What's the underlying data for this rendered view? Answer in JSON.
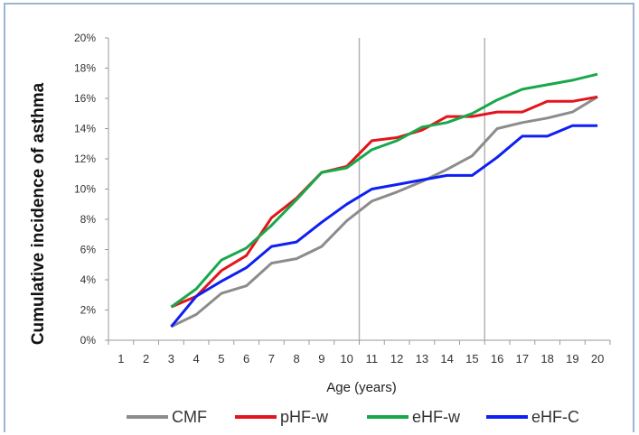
{
  "chart_data": {
    "type": "line",
    "title": "",
    "xlabel": "Age (years)",
    "ylabel": "Cumulative incidence of asthma",
    "x": [
      1,
      2,
      3,
      4,
      5,
      6,
      7,
      8,
      9,
      10,
      11,
      12,
      13,
      14,
      15,
      16,
      17,
      18,
      19,
      20
    ],
    "x_tick_labels": [
      "1",
      "2",
      "3",
      "4",
      "5",
      "6",
      "7",
      "8",
      "9",
      "10",
      "11",
      "12",
      "13",
      "14",
      "15",
      "16",
      "17",
      "18",
      "19",
      "20"
    ],
    "y_tick_labels": [
      "0%",
      "2%",
      "4%",
      "6%",
      "8%",
      "10%",
      "12%",
      "14%",
      "16%",
      "18%",
      "20%"
    ],
    "ylim": [
      0,
      20
    ],
    "y_unit": "%",
    "grid": false,
    "vertical_reference_lines_x": [
      10.5,
      15.5
    ],
    "legend_position": "bottom",
    "series": [
      {
        "name": "CMF",
        "color": "#8c8c8c",
        "x": [
          3,
          4,
          5,
          6,
          7,
          8,
          9,
          10,
          11,
          12,
          13,
          14,
          15,
          16,
          17,
          18,
          19,
          20
        ],
        "values": [
          0.9,
          1.7,
          3.1,
          3.6,
          5.1,
          5.4,
          6.2,
          7.9,
          9.2,
          9.8,
          10.5,
          11.3,
          12.2,
          14.0,
          14.4,
          14.7,
          15.1,
          16.1
        ]
      },
      {
        "name": "pHF-w",
        "color": "#e3141b",
        "x": [
          3,
          4,
          5,
          6,
          7,
          8,
          9,
          10,
          11,
          12,
          13,
          14,
          15,
          16,
          17,
          18,
          19,
          20
        ],
        "values": [
          2.2,
          2.9,
          4.6,
          5.6,
          8.1,
          9.4,
          11.1,
          11.5,
          13.2,
          13.4,
          13.9,
          14.8,
          14.8,
          15.1,
          15.1,
          15.8,
          15.8,
          16.1
        ]
      },
      {
        "name": "eHF-w",
        "color": "#18a84a",
        "x": [
          3,
          4,
          5,
          6,
          7,
          8,
          9,
          10,
          11,
          12,
          13,
          14,
          15,
          16,
          17,
          18,
          19,
          20
        ],
        "values": [
          2.2,
          3.4,
          5.3,
          6.1,
          7.6,
          9.3,
          11.1,
          11.4,
          12.6,
          13.2,
          14.1,
          14.4,
          15.0,
          15.9,
          16.6,
          16.9,
          17.2,
          17.6
        ]
      },
      {
        "name": "eHF-C",
        "color": "#0d1ff2",
        "x": [
          3,
          4,
          5,
          6,
          7,
          8,
          9,
          10,
          11,
          12,
          13,
          14,
          15,
          16,
          17,
          18,
          19,
          20
        ],
        "values": [
          0.9,
          2.9,
          3.9,
          4.8,
          6.2,
          6.5,
          7.8,
          9.0,
          10.0,
          10.3,
          10.6,
          10.9,
          10.9,
          12.1,
          13.5,
          13.5,
          14.2,
          14.2
        ]
      }
    ]
  }
}
